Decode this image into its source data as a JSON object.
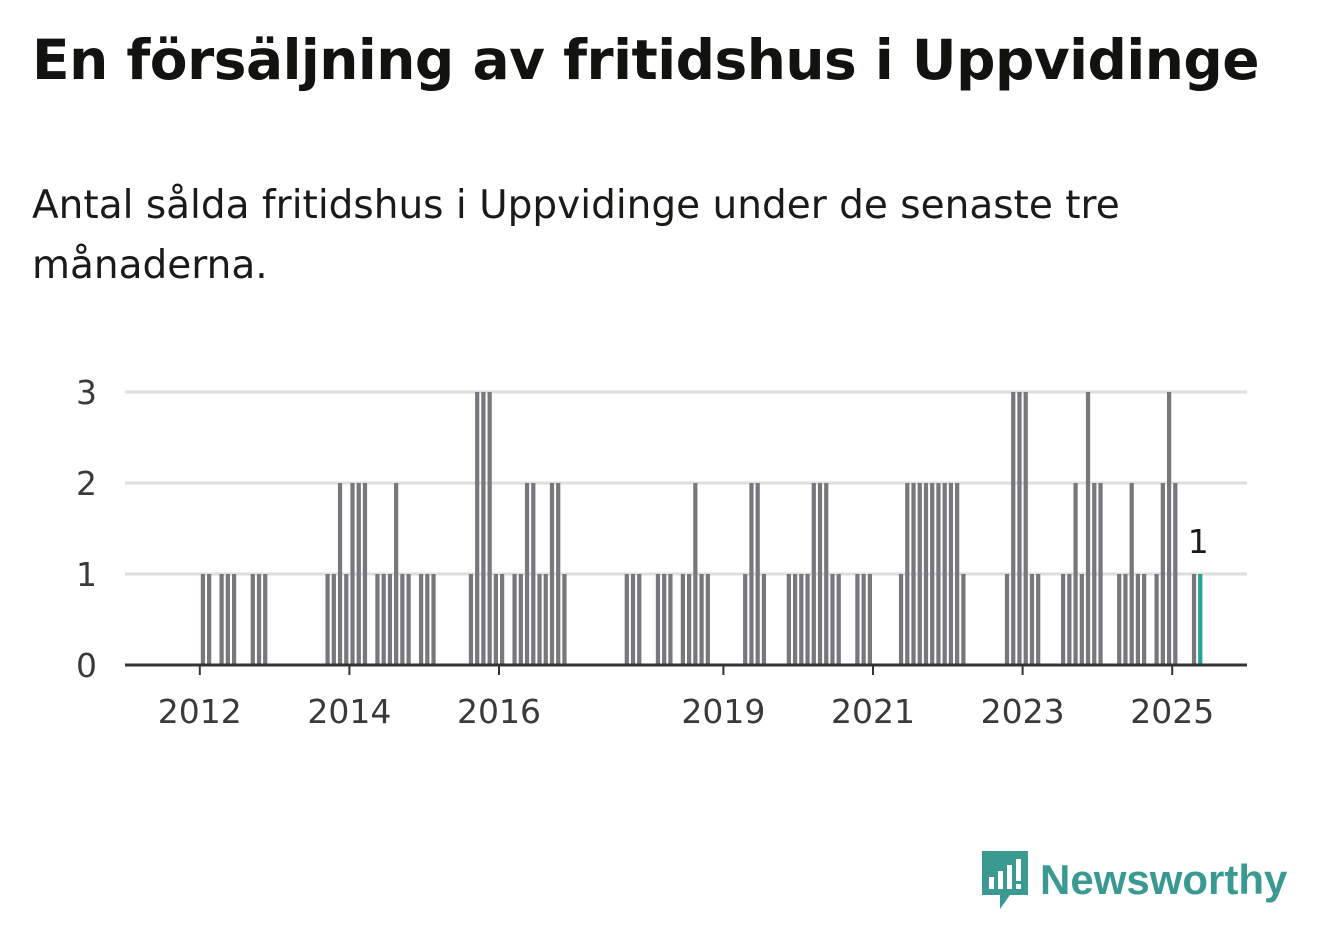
{
  "title": "En försäljning av fritidshus i Uppvidinge",
  "subtitle": "Antal sålda fritidshus i Uppvidinge under de senaste tre månaderna.",
  "brand": {
    "name": "Newsworthy",
    "icon": "newsworthy-logo-icon"
  },
  "colors": {
    "bar": "#77777c",
    "highlight": "#23a297",
    "grid": "#dddddd",
    "axis": "#333333",
    "brand": "#3a9a92"
  },
  "chart_data": {
    "type": "bar",
    "title": "",
    "xlabel": "",
    "ylabel": "",
    "ylim": [
      0,
      3
    ],
    "yticks": [
      "0",
      "1",
      "2",
      "3"
    ],
    "x_start": "2011-01",
    "x_end": "2025-12",
    "xticks": [
      "2012",
      "2014",
      "2016",
      "2019",
      "2021",
      "2023",
      "2025"
    ],
    "grid": true,
    "last_value_label": "1",
    "bars": [
      {
        "month": "2012-01",
        "value": 1
      },
      {
        "month": "2012-02",
        "value": 1
      },
      {
        "month": "2012-04",
        "value": 1
      },
      {
        "month": "2012-05",
        "value": 1
      },
      {
        "month": "2012-06",
        "value": 1
      },
      {
        "month": "2012-09",
        "value": 1
      },
      {
        "month": "2012-10",
        "value": 1
      },
      {
        "month": "2012-11",
        "value": 1
      },
      {
        "month": "2013-09",
        "value": 1
      },
      {
        "month": "2013-10",
        "value": 1
      },
      {
        "month": "2013-11",
        "value": 2
      },
      {
        "month": "2013-12",
        "value": 1
      },
      {
        "month": "2014-01",
        "value": 2
      },
      {
        "month": "2014-02",
        "value": 2
      },
      {
        "month": "2014-03",
        "value": 2
      },
      {
        "month": "2014-05",
        "value": 1
      },
      {
        "month": "2014-06",
        "value": 1
      },
      {
        "month": "2014-07",
        "value": 1
      },
      {
        "month": "2014-08",
        "value": 2
      },
      {
        "month": "2014-09",
        "value": 1
      },
      {
        "month": "2014-10",
        "value": 1
      },
      {
        "month": "2014-12",
        "value": 1
      },
      {
        "month": "2015-01",
        "value": 1
      },
      {
        "month": "2015-02",
        "value": 1
      },
      {
        "month": "2015-08",
        "value": 1
      },
      {
        "month": "2015-09",
        "value": 3
      },
      {
        "month": "2015-10",
        "value": 3
      },
      {
        "month": "2015-11",
        "value": 3
      },
      {
        "month": "2015-12",
        "value": 1
      },
      {
        "month": "2016-01",
        "value": 1
      },
      {
        "month": "2016-03",
        "value": 1
      },
      {
        "month": "2016-04",
        "value": 1
      },
      {
        "month": "2016-05",
        "value": 2
      },
      {
        "month": "2016-06",
        "value": 2
      },
      {
        "month": "2016-07",
        "value": 1
      },
      {
        "month": "2016-08",
        "value": 1
      },
      {
        "month": "2016-09",
        "value": 2
      },
      {
        "month": "2016-10",
        "value": 2
      },
      {
        "month": "2016-11",
        "value": 1
      },
      {
        "month": "2017-09",
        "value": 1
      },
      {
        "month": "2017-10",
        "value": 1
      },
      {
        "month": "2017-11",
        "value": 1
      },
      {
        "month": "2018-02",
        "value": 1
      },
      {
        "month": "2018-03",
        "value": 1
      },
      {
        "month": "2018-04",
        "value": 1
      },
      {
        "month": "2018-06",
        "value": 1
      },
      {
        "month": "2018-07",
        "value": 1
      },
      {
        "month": "2018-08",
        "value": 2
      },
      {
        "month": "2018-09",
        "value": 1
      },
      {
        "month": "2018-10",
        "value": 1
      },
      {
        "month": "2019-04",
        "value": 1
      },
      {
        "month": "2019-05",
        "value": 2
      },
      {
        "month": "2019-06",
        "value": 2
      },
      {
        "month": "2019-07",
        "value": 1
      },
      {
        "month": "2019-11",
        "value": 1
      },
      {
        "month": "2019-12",
        "value": 1
      },
      {
        "month": "2020-01",
        "value": 1
      },
      {
        "month": "2020-02",
        "value": 1
      },
      {
        "month": "2020-03",
        "value": 2
      },
      {
        "month": "2020-04",
        "value": 2
      },
      {
        "month": "2020-05",
        "value": 2
      },
      {
        "month": "2020-06",
        "value": 1
      },
      {
        "month": "2020-07",
        "value": 1
      },
      {
        "month": "2020-10",
        "value": 1
      },
      {
        "month": "2020-11",
        "value": 1
      },
      {
        "month": "2020-12",
        "value": 1
      },
      {
        "month": "2021-05",
        "value": 1
      },
      {
        "month": "2021-06",
        "value": 2
      },
      {
        "month": "2021-07",
        "value": 2
      },
      {
        "month": "2021-08",
        "value": 2
      },
      {
        "month": "2021-09",
        "value": 2
      },
      {
        "month": "2021-10",
        "value": 2
      },
      {
        "month": "2021-11",
        "value": 2
      },
      {
        "month": "2021-12",
        "value": 2
      },
      {
        "month": "2022-01",
        "value": 2
      },
      {
        "month": "2022-02",
        "value": 2
      },
      {
        "month": "2022-03",
        "value": 1
      },
      {
        "month": "2022-10",
        "value": 1
      },
      {
        "month": "2022-11",
        "value": 3
      },
      {
        "month": "2022-12",
        "value": 3
      },
      {
        "month": "2023-01",
        "value": 3
      },
      {
        "month": "2023-02",
        "value": 1
      },
      {
        "month": "2023-03",
        "value": 1
      },
      {
        "month": "2023-07",
        "value": 1
      },
      {
        "month": "2023-08",
        "value": 1
      },
      {
        "month": "2023-09",
        "value": 2
      },
      {
        "month": "2023-10",
        "value": 1
      },
      {
        "month": "2023-11",
        "value": 3
      },
      {
        "month": "2023-12",
        "value": 2
      },
      {
        "month": "2024-01",
        "value": 2
      },
      {
        "month": "2024-04",
        "value": 1
      },
      {
        "month": "2024-05",
        "value": 1
      },
      {
        "month": "2024-06",
        "value": 2
      },
      {
        "month": "2024-07",
        "value": 1
      },
      {
        "month": "2024-08",
        "value": 1
      },
      {
        "month": "2024-10",
        "value": 1
      },
      {
        "month": "2024-11",
        "value": 2
      },
      {
        "month": "2024-12",
        "value": 3
      },
      {
        "month": "2025-01",
        "value": 2
      },
      {
        "month": "2025-04",
        "value": 1
      },
      {
        "month": "2025-05",
        "value": 1,
        "highlight": true
      }
    ]
  }
}
